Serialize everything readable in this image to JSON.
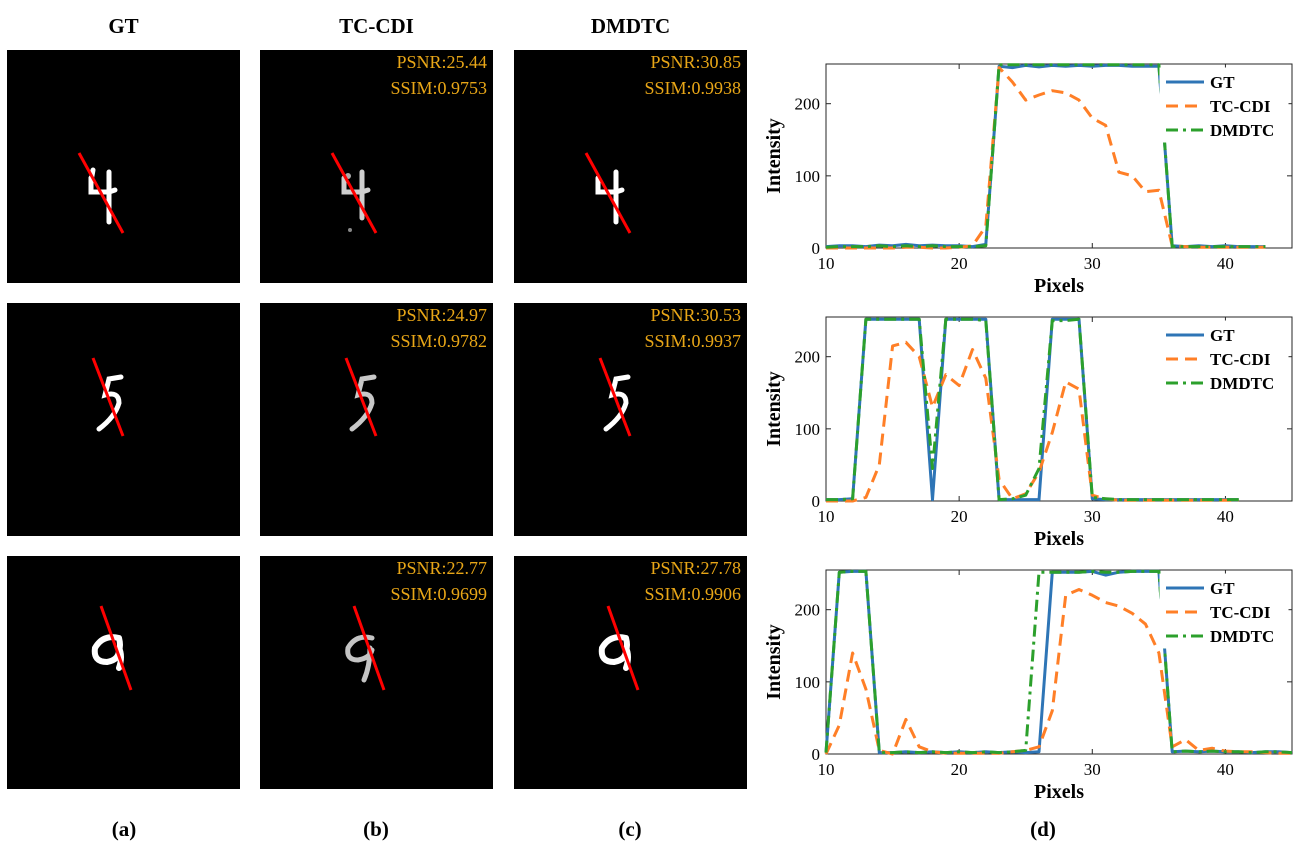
{
  "columns": {
    "gt": "GT",
    "tccdi": "TC-CDI",
    "dmdtc": "DMDTC"
  },
  "rows": [
    {
      "digit": "4",
      "tccdi": {
        "psnr": "PSNR:25.44",
        "ssim": "SSIM:0.9753"
      },
      "dmdtc": {
        "psnr": "PSNR:30.85",
        "ssim": "SSIM:0.9938"
      }
    },
    {
      "digit": "5",
      "tccdi": {
        "psnr": "PSNR:24.97",
        "ssim": "SSIM:0.9782"
      },
      "dmdtc": {
        "psnr": "PSNR:30.53",
        "ssim": "SSIM:0.9937"
      }
    },
    {
      "digit": "9",
      "tccdi": {
        "psnr": "PSNR:22.77",
        "ssim": "SSIM:0.9699"
      },
      "dmdtc": {
        "psnr": "PSNR:27.78",
        "ssim": "SSIM:0.9906"
      }
    }
  ],
  "sublabels": {
    "a": "(a)",
    "b": "(b)",
    "c": "(c)",
    "d": "(d)"
  },
  "colors": {
    "gt": "#2e75b6",
    "tccdi": "#ff7f27",
    "dmdtc": "#2ca02c",
    "metric": "#e8a617",
    "line": "#ff0000"
  },
  "chart_data": [
    {
      "type": "line",
      "xlabel": "Pixels",
      "ylabel": "Intensity",
      "xlim": [
        10,
        45
      ],
      "ylim": [
        0,
        255
      ],
      "xticks": [
        10,
        20,
        30,
        40
      ],
      "yticks": [
        0,
        100,
        200
      ],
      "legend_position": "top-right",
      "series": [
        {
          "name": "GT",
          "style": "solid",
          "x": [
            10,
            11,
            12,
            13,
            14,
            15,
            16,
            17,
            18,
            19,
            20,
            21,
            22,
            23,
            24,
            25,
            26,
            27,
            28,
            29,
            30,
            31,
            32,
            33,
            34,
            35,
            36,
            37,
            38,
            39,
            40,
            41,
            42,
            43
          ],
          "values": [
            2,
            3,
            3,
            2,
            4,
            3,
            5,
            3,
            4,
            3,
            3,
            2,
            5,
            252,
            250,
            253,
            251,
            253,
            252,
            253,
            252,
            253,
            253,
            252,
            252,
            252,
            3,
            2,
            3,
            2,
            3,
            2,
            2,
            2
          ]
        },
        {
          "name": "TC-CDI",
          "style": "dashed",
          "x": [
            10,
            11,
            12,
            13,
            14,
            15,
            16,
            17,
            18,
            19,
            20,
            21,
            22,
            23,
            24,
            25,
            26,
            27,
            28,
            29,
            30,
            31,
            32,
            33,
            34,
            35,
            36,
            37,
            38,
            39,
            40,
            41,
            42,
            43
          ],
          "values": [
            0,
            0,
            0,
            0,
            0,
            0,
            1,
            1,
            0,
            0,
            1,
            3,
            30,
            250,
            230,
            205,
            212,
            218,
            215,
            205,
            180,
            170,
            105,
            100,
            78,
            80,
            3,
            2,
            1,
            1,
            1,
            1,
            1,
            1
          ]
        },
        {
          "name": "DMDTC",
          "style": "dashdot",
          "x": [
            10,
            11,
            12,
            13,
            14,
            15,
            16,
            17,
            18,
            19,
            20,
            21,
            22,
            23,
            24,
            25,
            26,
            27,
            28,
            29,
            30,
            31,
            32,
            33,
            34,
            35,
            36,
            37,
            38,
            39,
            40,
            41,
            42,
            43
          ],
          "values": [
            1,
            2,
            2,
            2,
            3,
            2,
            3,
            2,
            3,
            2,
            2,
            2,
            3,
            254,
            254,
            254,
            254,
            254,
            254,
            254,
            254,
            254,
            254,
            254,
            254,
            254,
            2,
            2,
            2,
            2,
            2,
            2,
            2,
            2
          ]
        }
      ]
    },
    {
      "type": "line",
      "xlabel": "Pixels",
      "ylabel": "Intensity",
      "xlim": [
        10,
        45
      ],
      "ylim": [
        0,
        255
      ],
      "xticks": [
        10,
        20,
        30,
        40
      ],
      "yticks": [
        0,
        100,
        200
      ],
      "legend_position": "top-right",
      "series": [
        {
          "name": "GT",
          "style": "solid",
          "x": [
            10,
            11,
            12,
            13,
            14,
            15,
            16,
            17,
            18,
            19,
            20,
            21,
            22,
            23,
            24,
            25,
            26,
            27,
            28,
            29,
            30,
            31,
            32,
            33,
            34,
            35,
            36,
            37,
            38,
            39,
            40,
            41
          ],
          "values": [
            2,
            2,
            3,
            252,
            252,
            252,
            252,
            252,
            2,
            252,
            252,
            252,
            252,
            2,
            2,
            2,
            2,
            252,
            252,
            252,
            3,
            2,
            2,
            2,
            2,
            2,
            2,
            2,
            2,
            2,
            2,
            2
          ]
        },
        {
          "name": "TC-CDI",
          "style": "dashed",
          "x": [
            10,
            11,
            12,
            13,
            14,
            15,
            16,
            17,
            18,
            19,
            20,
            21,
            22,
            23,
            24,
            25,
            26,
            27,
            28,
            29,
            30,
            31,
            32,
            33,
            34,
            35,
            36,
            37,
            38,
            39,
            40,
            41
          ],
          "values": [
            0,
            0,
            0,
            5,
            50,
            215,
            220,
            200,
            130,
            175,
            160,
            210,
            170,
            30,
            3,
            10,
            40,
            95,
            165,
            155,
            8,
            3,
            1,
            1,
            1,
            1,
            1,
            1,
            1,
            1,
            1,
            1
          ]
        },
        {
          "name": "DMDTC",
          "style": "dashdot",
          "x": [
            10,
            11,
            12,
            13,
            14,
            15,
            16,
            17,
            18,
            19,
            20,
            21,
            22,
            23,
            24,
            25,
            26,
            27,
            28,
            29,
            30,
            31,
            32,
            33,
            34,
            35,
            36,
            37,
            38,
            39,
            40,
            41
          ],
          "values": [
            2,
            2,
            3,
            252,
            252,
            252,
            252,
            252,
            45,
            252,
            252,
            252,
            250,
            2,
            3,
            8,
            45,
            250,
            250,
            252,
            5,
            3,
            2,
            2,
            2,
            2,
            2,
            2,
            2,
            2,
            2,
            2
          ]
        }
      ]
    },
    {
      "type": "line",
      "xlabel": "Pixels",
      "ylabel": "Intensity",
      "xlim": [
        10,
        45
      ],
      "ylim": [
        0,
        255
      ],
      "xticks": [
        10,
        20,
        30,
        40
      ],
      "yticks": [
        0,
        100,
        200
      ],
      "legend_position": "top-right",
      "series": [
        {
          "name": "GT",
          "style": "solid",
          "x": [
            10,
            11,
            12,
            13,
            14,
            15,
            16,
            17,
            18,
            19,
            20,
            21,
            22,
            23,
            24,
            25,
            26,
            27,
            28,
            29,
            30,
            31,
            32,
            33,
            34,
            35,
            36,
            37,
            38,
            39,
            40,
            41,
            42,
            43,
            44,
            45
          ],
          "values": [
            2,
            252,
            253,
            253,
            2,
            2,
            3,
            2,
            3,
            2,
            3,
            2,
            3,
            2,
            3,
            2,
            3,
            252,
            252,
            252,
            253,
            248,
            252,
            253,
            253,
            253,
            3,
            4,
            3,
            4,
            3,
            3,
            2,
            3,
            3,
            2
          ]
        },
        {
          "name": "TC-CDI",
          "style": "dashed",
          "x": [
            10,
            11,
            12,
            13,
            14,
            15,
            16,
            17,
            18,
            19,
            20,
            21,
            22,
            23,
            24,
            25,
            26,
            27,
            28,
            29,
            30,
            31,
            32,
            33,
            34,
            35,
            36,
            37,
            38,
            39,
            40,
            41,
            42,
            43,
            44,
            45
          ],
          "values": [
            0,
            40,
            140,
            90,
            5,
            0,
            48,
            10,
            3,
            1,
            1,
            1,
            1,
            1,
            3,
            5,
            10,
            60,
            220,
            228,
            220,
            210,
            205,
            195,
            180,
            140,
            10,
            20,
            5,
            8,
            4,
            3,
            3,
            2,
            1,
            1
          ]
        },
        {
          "name": "DMDTC",
          "style": "dashdot",
          "x": [
            10,
            11,
            12,
            13,
            14,
            15,
            16,
            17,
            18,
            19,
            20,
            21,
            22,
            23,
            24,
            25,
            26,
            27,
            28,
            29,
            30,
            31,
            32,
            33,
            34,
            35,
            36,
            37,
            38,
            39,
            40,
            41,
            42,
            43,
            44,
            45
          ],
          "values": [
            2,
            252,
            253,
            253,
            2,
            2,
            3,
            2,
            3,
            2,
            3,
            2,
            3,
            2,
            3,
            5,
            252,
            252,
            252,
            252,
            253,
            252,
            252,
            253,
            253,
            253,
            3,
            4,
            3,
            4,
            3,
            3,
            2,
            3,
            3,
            2
          ]
        }
      ]
    }
  ]
}
